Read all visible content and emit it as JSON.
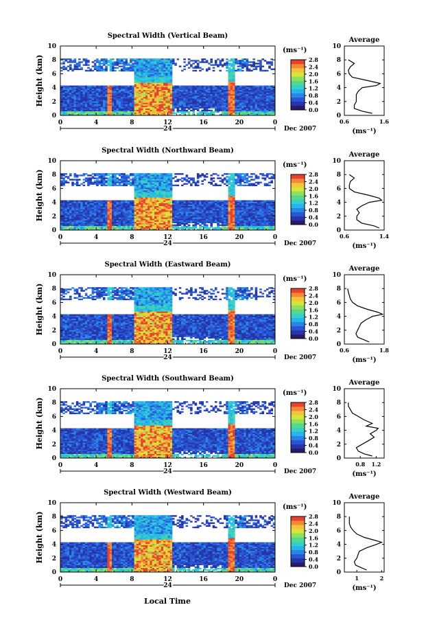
{
  "figure": {
    "date_label": "Dec 2007",
    "day_label": "24",
    "x_axis_title": "Local Time",
    "y_axis_title": "Height (km)",
    "colorbar_unit": "(ms⁻¹)",
    "average_title": "Average",
    "average_unit": "(ms⁻¹)",
    "colormap": [
      "#2b1a6b",
      "#2436a8",
      "#2a56d6",
      "#2a86e6",
      "#23b6ea",
      "#36d0c6",
      "#54d98c",
      "#8fe05a",
      "#d4e63a",
      "#f4c43a",
      "#f58a34",
      "#e8422e"
    ]
  },
  "chart_data": [
    {
      "type": "heatmap",
      "title": "Spectral Width (Vertical Beam)",
      "xlabel": "Local Time",
      "ylabel": "Height (km)",
      "xlim": [
        0,
        24
      ],
      "ylim": [
        0,
        10
      ],
      "xticks": [
        "0",
        "4",
        "8",
        "12",
        "16",
        "20",
        "0"
      ],
      "yticks": [
        "0",
        "2",
        "4",
        "6",
        "8",
        "10"
      ],
      "colorbar": {
        "unit": "(ms⁻¹)",
        "range": [
          0,
          2.8
        ],
        "ticks": [
          "0.0",
          "0.4",
          "0.8",
          "1.2",
          "1.6",
          "2.0",
          "2.4",
          "2.8"
        ]
      },
      "average_profile": {
        "title": "Average",
        "xlabel": "(ms⁻¹)",
        "xlim": [
          0.6,
          1.6
        ],
        "xticks": [
          "0.6",
          "1.6"
        ],
        "ylim": [
          0,
          10
        ],
        "yticks": [
          "0",
          "2",
          "4",
          "6",
          "8",
          "10"
        ],
        "height": [
          0.3,
          0.6,
          1.0,
          1.5,
          2.0,
          2.5,
          3.0,
          3.5,
          4.0,
          4.3,
          4.6,
          5.0,
          5.5,
          6.0,
          6.5,
          7.0,
          7.5,
          8.0
        ],
        "value": [
          1.3,
          1.05,
          0.85,
          0.85,
          0.9,
          0.9,
          0.9,
          0.95,
          1.05,
          1.4,
          1.5,
          1.2,
          0.8,
          0.72,
          0.7,
          0.75,
          0.85,
          0.7
        ]
      }
    },
    {
      "type": "heatmap",
      "title": "Spectral Width (Northward Beam)",
      "xlabel": "Local Time",
      "ylabel": "Height (km)",
      "xlim": [
        0,
        24
      ],
      "ylim": [
        0,
        10
      ],
      "xticks": [
        "0",
        "4",
        "8",
        "12",
        "16",
        "20",
        "0"
      ],
      "yticks": [
        "0",
        "2",
        "4",
        "6",
        "8",
        "10"
      ],
      "colorbar": {
        "unit": "(ms⁻¹)",
        "range": [
          0,
          2.8
        ],
        "ticks": [
          "0.0",
          "0.4",
          "0.8",
          "1.2",
          "1.6",
          "2.0",
          "2.4",
          "2.8"
        ]
      },
      "average_profile": {
        "title": "Average",
        "xlabel": "(ms⁻¹)",
        "xlim": [
          0.6,
          1.4
        ],
        "xticks": [
          "0.6",
          "1.4"
        ],
        "ylim": [
          0,
          10
        ],
        "yticks": [
          "0",
          "2",
          "4",
          "6",
          "8",
          "10"
        ],
        "height": [
          0.3,
          0.6,
          1.0,
          1.5,
          2.0,
          2.5,
          3.0,
          3.5,
          4.0,
          4.3,
          4.6,
          5.0,
          5.5,
          6.0,
          6.5,
          7.0,
          7.5,
          8.0
        ],
        "value": [
          1.3,
          1.2,
          0.95,
          0.85,
          0.85,
          0.9,
          0.85,
          0.95,
          1.1,
          1.35,
          1.3,
          1.1,
          0.8,
          0.7,
          0.7,
          0.72,
          0.8,
          0.7
        ]
      }
    },
    {
      "type": "heatmap",
      "title": "Spectral Width (Eastward Beam)",
      "xlabel": "Local Time",
      "ylabel": "Height (km)",
      "xlim": [
        0,
        24
      ],
      "ylim": [
        0,
        10
      ],
      "xticks": [
        "0",
        "4",
        "8",
        "12",
        "16",
        "20",
        "0"
      ],
      "yticks": [
        "0",
        "2",
        "4",
        "6",
        "8",
        "10"
      ],
      "colorbar": {
        "unit": "(ms⁻¹)",
        "range": [
          0,
          2.8
        ],
        "ticks": [
          "0.0",
          "0.4",
          "0.8",
          "1.2",
          "1.6",
          "2.0",
          "2.4",
          "2.8"
        ]
      },
      "average_profile": {
        "title": "Average",
        "xlabel": "(ms⁻¹)",
        "xlim": [
          0.6,
          1.8
        ],
        "xticks": [
          "0.6",
          "1.8"
        ],
        "ylim": [
          0,
          10
        ],
        "yticks": [
          "0",
          "2",
          "4",
          "6",
          "8",
          "10"
        ],
        "height": [
          0.3,
          0.6,
          1.0,
          1.5,
          2.0,
          2.5,
          3.0,
          3.5,
          4.0,
          4.3,
          4.6,
          5.0,
          5.5,
          6.0,
          6.5,
          7.0,
          7.5,
          8.0
        ],
        "value": [
          1.35,
          1.2,
          1.0,
          0.95,
          1.0,
          1.05,
          1.1,
          1.25,
          1.45,
          1.75,
          1.6,
          1.3,
          1.0,
          0.85,
          0.78,
          0.75,
          0.72,
          0.7
        ]
      }
    },
    {
      "type": "heatmap",
      "title": "Spectral Width (Southward Beam)",
      "xlabel": "Local Time",
      "ylabel": "Height (km)",
      "xlim": [
        0,
        24
      ],
      "ylim": [
        0,
        10
      ],
      "xticks": [
        "0",
        "4",
        "8",
        "12",
        "16",
        "20",
        "0"
      ],
      "yticks": [
        "0",
        "2",
        "4",
        "6",
        "8",
        "10"
      ],
      "colorbar": {
        "unit": "(ms⁻¹)",
        "range": [
          0,
          2.8
        ],
        "ticks": [
          "0.0",
          "0.4",
          "0.8",
          "1.2",
          "1.6",
          "2.0",
          "2.4",
          "2.8"
        ]
      },
      "average_profile": {
        "title": "Average",
        "xlabel": "(ms⁻¹)",
        "xlim": [
          0.4,
          1.4
        ],
        "xticks": [
          "0.8",
          "1.2"
        ],
        "ylim": [
          0,
          10
        ],
        "yticks": [
          "0",
          "2",
          "4",
          "6",
          "8",
          "10"
        ],
        "height": [
          0.3,
          0.6,
          1.0,
          1.5,
          2.0,
          2.5,
          3.0,
          3.5,
          4.0,
          4.3,
          4.6,
          5.0,
          5.5,
          6.0,
          6.5,
          7.0,
          7.5,
          8.0
        ],
        "value": [
          1.1,
          0.9,
          0.75,
          0.7,
          0.85,
          1.0,
          1.15,
          1.05,
          1.2,
          1.25,
          0.95,
          1.1,
          0.9,
          0.75,
          0.6,
          0.55,
          0.5,
          0.5
        ]
      }
    },
    {
      "type": "heatmap",
      "title": "Spectral Width (Westward Beam)",
      "xlabel": "Local Time",
      "ylabel": "Height (km)",
      "xlim": [
        0,
        24
      ],
      "ylim": [
        0,
        10
      ],
      "xticks": [
        "0",
        "4",
        "8",
        "12",
        "16",
        "20",
        "0"
      ],
      "yticks": [
        "0",
        "2",
        "4",
        "6",
        "8",
        "10"
      ],
      "colorbar": {
        "unit": "(ms⁻¹)",
        "range": [
          0,
          2.8
        ],
        "ticks": [
          "0.0",
          "0.4",
          "0.8",
          "1.2",
          "1.6",
          "2.0",
          "2.4",
          "2.8"
        ]
      },
      "average_profile": {
        "title": "Average",
        "xlabel": "(ms⁻¹)",
        "xlim": [
          0.5,
          2.1
        ],
        "xticks": [
          "1",
          "2"
        ],
        "ylim": [
          0,
          10
        ],
        "yticks": [
          "0",
          "2",
          "4",
          "6",
          "8",
          "10"
        ],
        "height": [
          0.3,
          0.6,
          1.0,
          1.5,
          2.0,
          2.5,
          3.0,
          3.5,
          4.0,
          4.3,
          4.6,
          5.0,
          5.5,
          6.0,
          6.5,
          7.0,
          7.5,
          8.0
        ],
        "value": [
          1.4,
          1.2,
          0.95,
          0.9,
          1.0,
          1.05,
          1.1,
          1.4,
          1.8,
          2.0,
          1.7,
          1.3,
          1.0,
          0.85,
          0.75,
          0.7,
          0.7,
          0.7
        ]
      }
    }
  ]
}
